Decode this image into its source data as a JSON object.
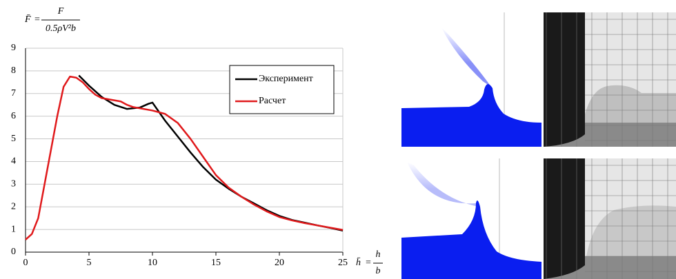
{
  "chart_data": {
    "type": "line",
    "ylabel": {
      "lhs": "F̄",
      "eq": "=",
      "numerator": "F",
      "denominator": "0.5ρV²b"
    },
    "xlabel": {
      "lhs": "h̄",
      "eq": "=",
      "numerator": "h",
      "denominator": "b"
    },
    "xlim": [
      0,
      25
    ],
    "xticks": [
      0,
      5,
      10,
      15,
      20,
      25
    ],
    "ylim": [
      0,
      9
    ],
    "yticks": [
      0,
      1,
      2,
      3,
      4,
      5,
      6,
      7,
      8,
      9
    ],
    "grid": true,
    "legend": "upper right",
    "series": [
      {
        "name": "Эксперимент",
        "color": "#000000",
        "x": [
          4.2,
          5,
          6,
          7,
          8,
          9,
          9.7,
          10,
          10.5,
          11,
          12,
          13,
          14,
          15,
          16,
          17,
          18,
          19,
          20,
          21,
          22,
          23,
          24,
          25
        ],
        "values": [
          7.8,
          7.35,
          6.85,
          6.5,
          6.32,
          6.38,
          6.55,
          6.6,
          6.2,
          5.8,
          5.1,
          4.4,
          3.75,
          3.2,
          2.8,
          2.45,
          2.15,
          1.85,
          1.6,
          1.42,
          1.3,
          1.18,
          1.07,
          0.95
        ]
      },
      {
        "name": "Расчет",
        "color": "#e0191b",
        "x": [
          0,
          0.5,
          1,
          1.5,
          2,
          2.5,
          3,
          3.5,
          4,
          4.5,
          5,
          5.5,
          6,
          6.5,
          7,
          7.5,
          8,
          8.5,
          9,
          10,
          11,
          12,
          13,
          14,
          15,
          16,
          17,
          18,
          19,
          20,
          21,
          22,
          23,
          24,
          25
        ],
        "values": [
          0.55,
          0.8,
          1.5,
          3,
          4.5,
          6,
          7.3,
          7.75,
          7.7,
          7.5,
          7.2,
          6.95,
          6.8,
          6.75,
          6.7,
          6.65,
          6.5,
          6.4,
          6.35,
          6.25,
          6.1,
          5.7,
          5.0,
          4.2,
          3.4,
          2.85,
          2.45,
          2.1,
          1.8,
          1.55,
          1.4,
          1.28,
          1.18,
          1.08,
          0.98
        ]
      }
    ]
  }
}
